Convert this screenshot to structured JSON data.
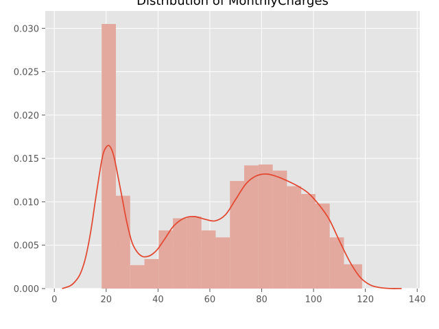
{
  "chart_data": {
    "type": "bar",
    "title": "Distribution of MonthlyCharges",
    "xlabel": "",
    "ylabel": "",
    "xlim": [
      -3.5,
      141
    ],
    "ylim": [
      0,
      0.032
    ],
    "grid": true,
    "style": "ggplot",
    "x_ticks": [
      0,
      20,
      40,
      60,
      80,
      100,
      120,
      140
    ],
    "x_tick_labels": [
      "0",
      "20",
      "40",
      "60",
      "80",
      "100",
      "120",
      "140"
    ],
    "y_ticks": [
      0.0,
      0.005,
      0.01,
      0.015,
      0.02,
      0.025,
      0.03
    ],
    "y_tick_labels": [
      "0.000",
      "0.005",
      "0.010",
      "0.015",
      "0.020",
      "0.025",
      "0.030"
    ],
    "histogram": {
      "bin_edges": [
        18.25,
        23.75,
        29.25,
        34.75,
        40.25,
        45.75,
        51.25,
        56.75,
        62.25,
        67.75,
        73.25,
        78.75,
        84.25,
        89.75,
        95.25,
        100.75,
        106.25,
        111.75,
        118.75
      ],
      "densities": [
        0.0305,
        0.0107,
        0.0027,
        0.0034,
        0.0067,
        0.0081,
        0.0083,
        0.0067,
        0.0059,
        0.0124,
        0.0142,
        0.0143,
        0.0136,
        0.0118,
        0.0109,
        0.0098,
        0.0059,
        0.0028
      ]
    },
    "kde": {
      "x": [
        3,
        6,
        8,
        10,
        12,
        14,
        16,
        18,
        19,
        20,
        21,
        22,
        23,
        24,
        26,
        28,
        30,
        32,
        34,
        36,
        38,
        40,
        43,
        46,
        50,
        54,
        58,
        62,
        66,
        70,
        74,
        78,
        82,
        86,
        90,
        94,
        98,
        102,
        106,
        110,
        114,
        118,
        122,
        126,
        130,
        134
      ],
      "y": [
        0.0,
        0.0003,
        0.0008,
        0.0017,
        0.0035,
        0.0065,
        0.0105,
        0.0143,
        0.0157,
        0.0163,
        0.0165,
        0.0161,
        0.0152,
        0.0138,
        0.0107,
        0.0076,
        0.0053,
        0.0042,
        0.0037,
        0.0037,
        0.004,
        0.0046,
        0.0059,
        0.0072,
        0.0081,
        0.0083,
        0.008,
        0.0078,
        0.0085,
        0.0103,
        0.0121,
        0.013,
        0.0132,
        0.0129,
        0.0124,
        0.0118,
        0.011,
        0.0097,
        0.008,
        0.0055,
        0.0031,
        0.0013,
        0.0004,
        0.0001,
        0.0,
        0.0
      ]
    },
    "colors": {
      "bar_fill": "#e4a99e",
      "kde_line": "#e24a33",
      "panel_background": "#e5e5e5",
      "grid": "#ffffff",
      "tick_text": "#555555"
    }
  }
}
